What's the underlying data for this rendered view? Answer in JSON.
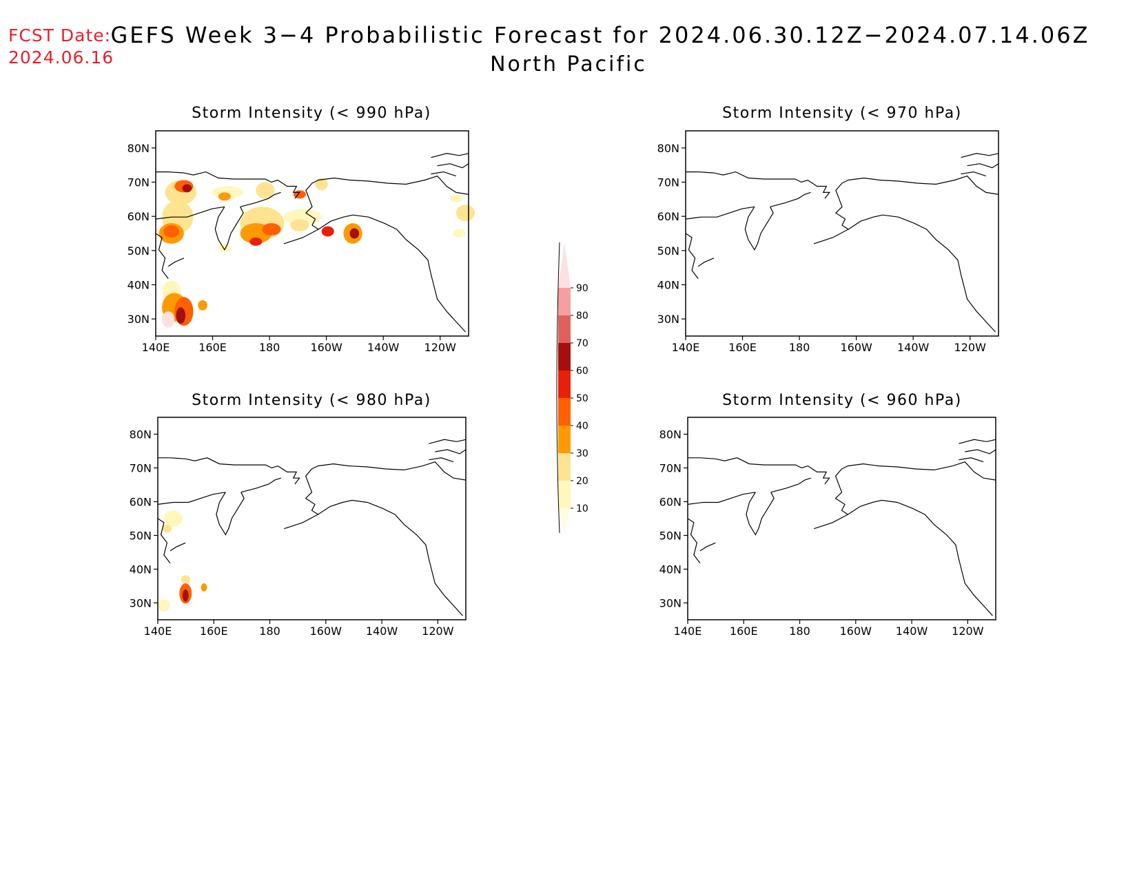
{
  "header": {
    "fcst_label": "FCST Date:",
    "fcst_date": "2024.06.16",
    "title": "GEFS Week 3−4 Probabilistic Forecast for 2024.06.30.12Z−2024.07.14.06Z",
    "region": "North Pacific"
  },
  "axes": {
    "lat_ticks": [
      "80N",
      "70N",
      "60N",
      "50N",
      "40N",
      "30N"
    ],
    "lon_ticks": [
      "140E",
      "160E",
      "180",
      "160W",
      "140W",
      "120W"
    ]
  },
  "panels": [
    {
      "id": "p990",
      "title": "Storm Intensity (< 990 hPa)",
      "has_data": true
    },
    {
      "id": "p970",
      "title": "Storm Intensity (< 970 hPa)",
      "has_data": false
    },
    {
      "id": "p980",
      "title": "Storm Intensity (< 980 hPa)",
      "has_data": true
    },
    {
      "id": "p960",
      "title": "Storm Intensity (< 960 hPa)",
      "has_data": false
    }
  ],
  "colorbar": {
    "levels": [
      "10",
      "20",
      "30",
      "40",
      "50",
      "60",
      "70",
      "80",
      "90"
    ],
    "colors": [
      "#fff7bc",
      "#fee391",
      "#fe9a00",
      "#ff6000",
      "#e8200a",
      "#a50f0f",
      "#e06060",
      "#f4a0a0",
      "#fde0e0"
    ]
  },
  "colors": {
    "fcst": "#e8202a",
    "prob_low": "#fff5c0",
    "prob_mid": "#fdd85a",
    "prob_orange": "#fe9a00",
    "prob_red": "#e8400a",
    "prob_dark": "#a50f0f",
    "prob_pink": "#fde0e0"
  }
}
